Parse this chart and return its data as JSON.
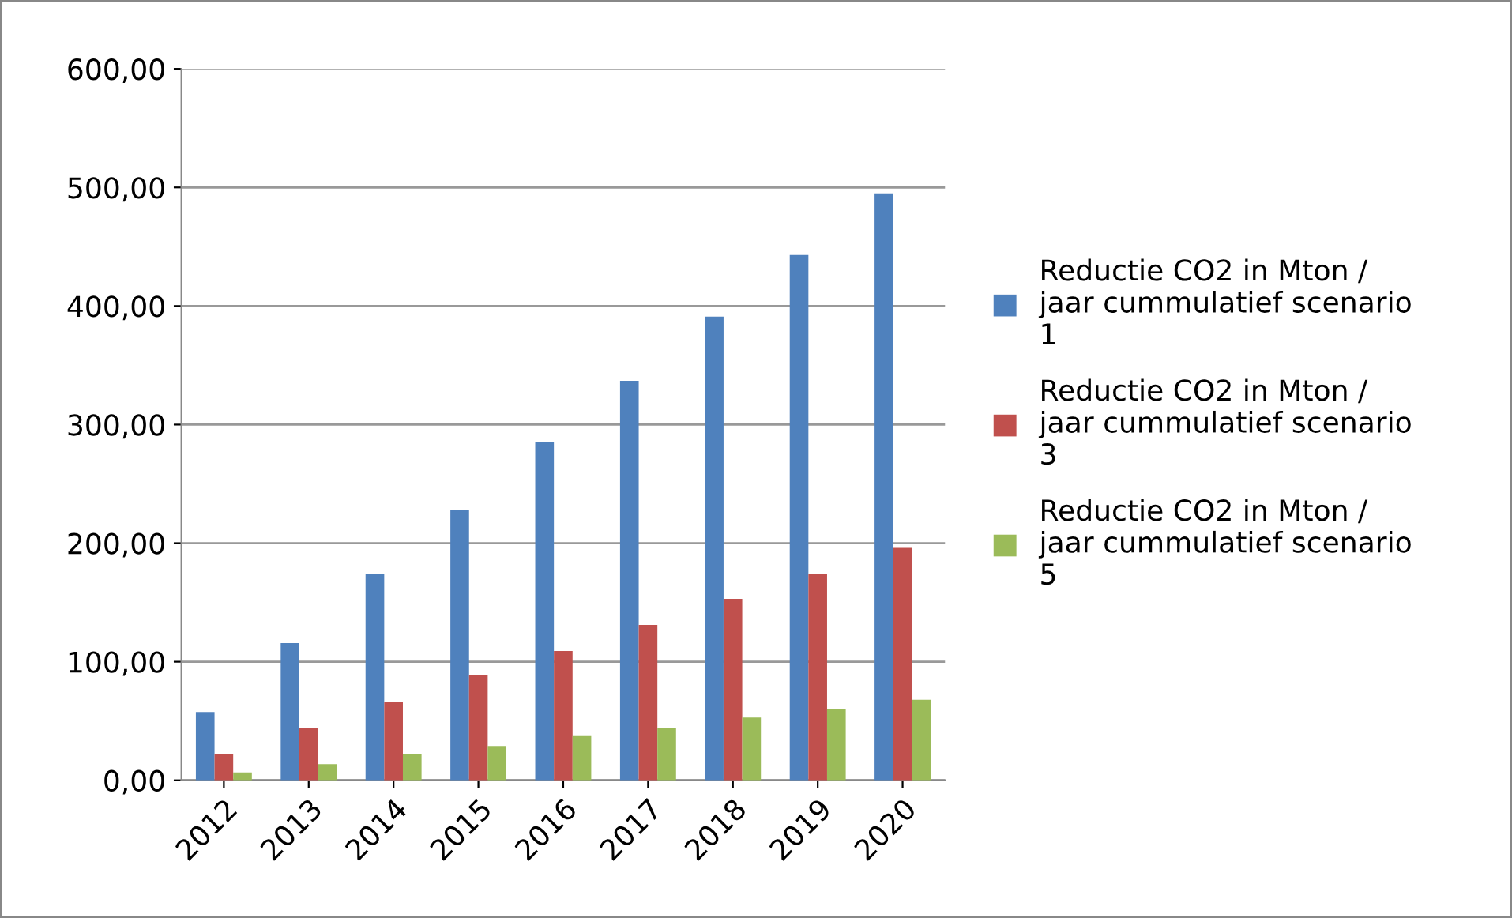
{
  "chart_data": {
    "type": "bar",
    "categories": [
      "2012",
      "2013",
      "2014",
      "2015",
      "2016",
      "2017",
      "2018",
      "2019",
      "2020"
    ],
    "series": [
      {
        "name": "Reductie CO2 in Mton /\njaar cummulatief scenario\n1",
        "color": "#4f81bd",
        "values": [
          57.6,
          115.7,
          174,
          228,
          285,
          337,
          391,
          443,
          495
        ]
      },
      {
        "name": "Reductie CO2 in Mton /\njaar cummulatief scenario\n3",
        "color": "#c0504d",
        "values": [
          22,
          44,
          66.5,
          89,
          109,
          131,
          153,
          174,
          196
        ]
      },
      {
        "name": "Reductie CO2 in Mton /\njaar cummulatief scenario\n5",
        "color": "#9bbb59",
        "values": [
          6.7,
          13.7,
          22,
          29,
          38,
          44,
          53,
          60,
          68
        ]
      }
    ],
    "ylim": [
      0,
      600
    ],
    "yticks": [
      {
        "value": 0,
        "label": "0,00"
      },
      {
        "value": 100,
        "label": "100,00"
      },
      {
        "value": 200,
        "label": "200,00"
      },
      {
        "value": 300,
        "label": "300,00"
      },
      {
        "value": 400,
        "label": "400,00"
      },
      {
        "value": 500,
        "label": "500,00"
      },
      {
        "value": 600,
        "label": "600,00"
      }
    ],
    "grid": "y",
    "legend": "right"
  }
}
